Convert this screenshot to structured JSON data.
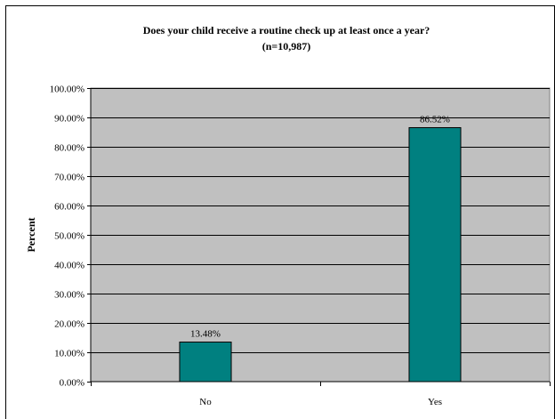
{
  "top_fragment": "",
  "chart_data": {
    "type": "bar",
    "title": "Does your child receive a routine check up at least once a year?",
    "subtitle": "(n=10,987)",
    "xlabel": "",
    "ylabel": "Percent",
    "categories": [
      "No",
      "Yes"
    ],
    "values": [
      13.48,
      86.52
    ],
    "data_labels": [
      "13.48%",
      "86.52%"
    ],
    "ylim": [
      0,
      100
    ],
    "yticks": [
      0,
      10,
      20,
      30,
      40,
      50,
      60,
      70,
      80,
      90,
      100
    ],
    "ytick_labels": [
      "0.00%",
      "10.00%",
      "20.00%",
      "30.00%",
      "40.00%",
      "50.00%",
      "60.00%",
      "70.00%",
      "80.00%",
      "90.00%",
      "100.00%"
    ],
    "grid": true,
    "legend": "none",
    "colors": {
      "bar": "#008080",
      "plot_background": "#c0c0c0",
      "gridline": "#000000"
    }
  }
}
